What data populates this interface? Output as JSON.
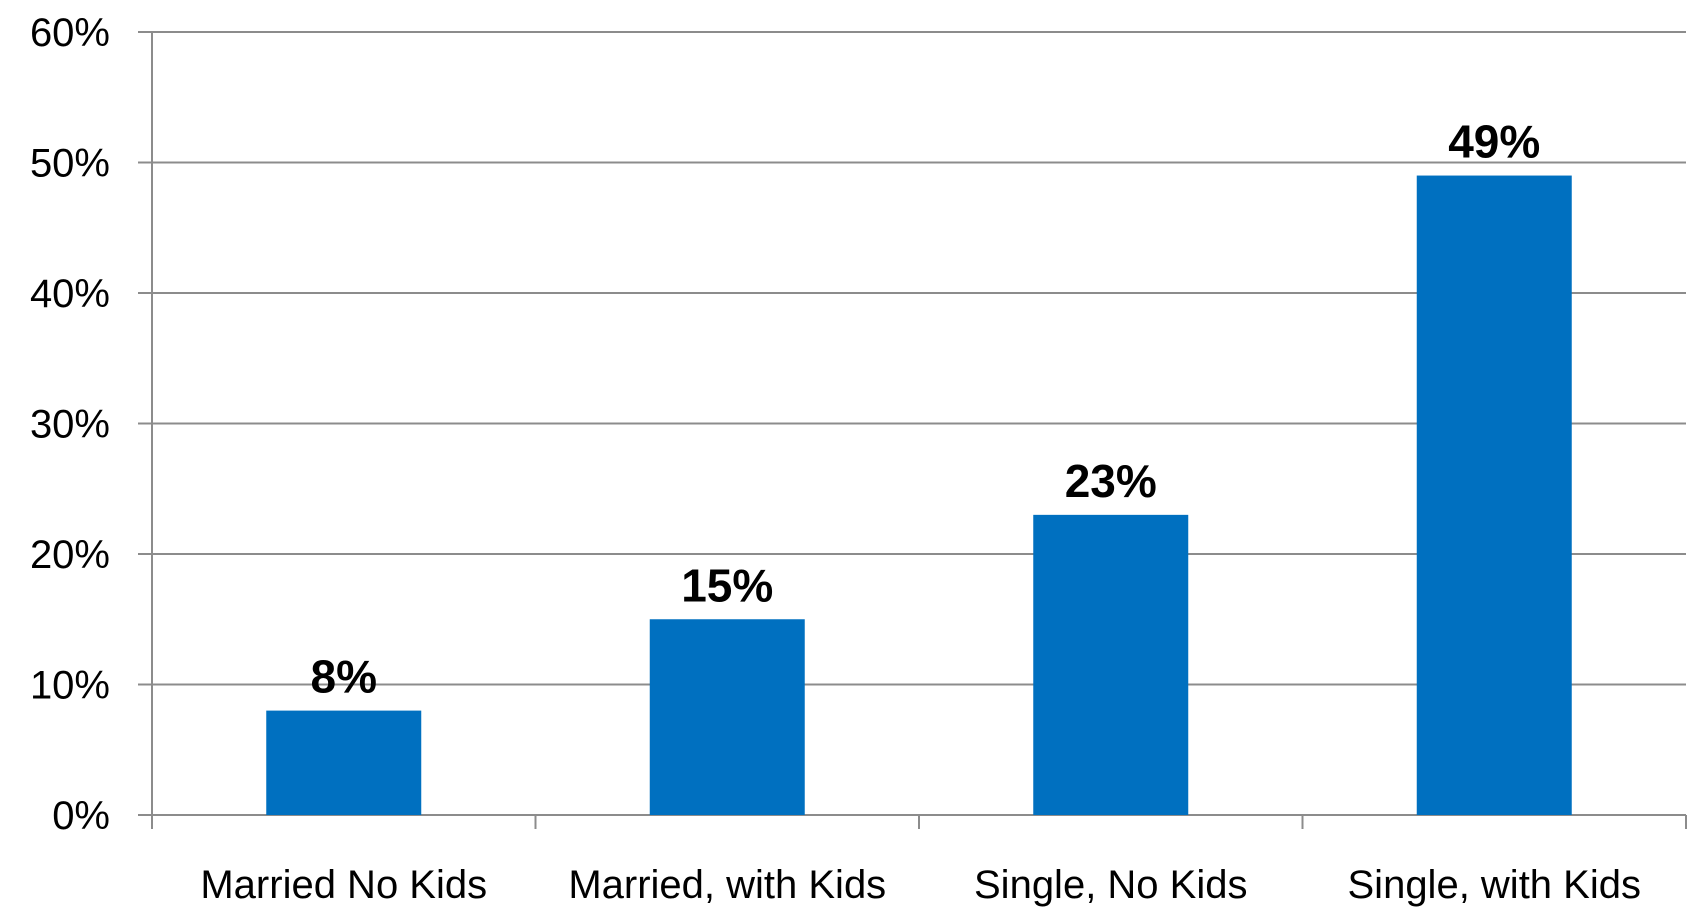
{
  "chart_data": {
    "type": "bar",
    "categories": [
      "Married No Kids",
      "Married, with Kids",
      "Single, No Kids",
      "Single, with Kids"
    ],
    "values": [
      8,
      15,
      23,
      49
    ],
    "data_labels": [
      "8%",
      "15%",
      "23%",
      "49%"
    ],
    "yticks": [
      0,
      10,
      20,
      30,
      40,
      50,
      60
    ],
    "ytick_labels": [
      "0%",
      "10%",
      "20%",
      "30%",
      "40%",
      "50%",
      "60%"
    ],
    "ylim": [
      0,
      60
    ],
    "title": "",
    "xlabel": "",
    "ylabel": "",
    "grid": true,
    "legend": "none",
    "bar_color": "#0070c0"
  }
}
